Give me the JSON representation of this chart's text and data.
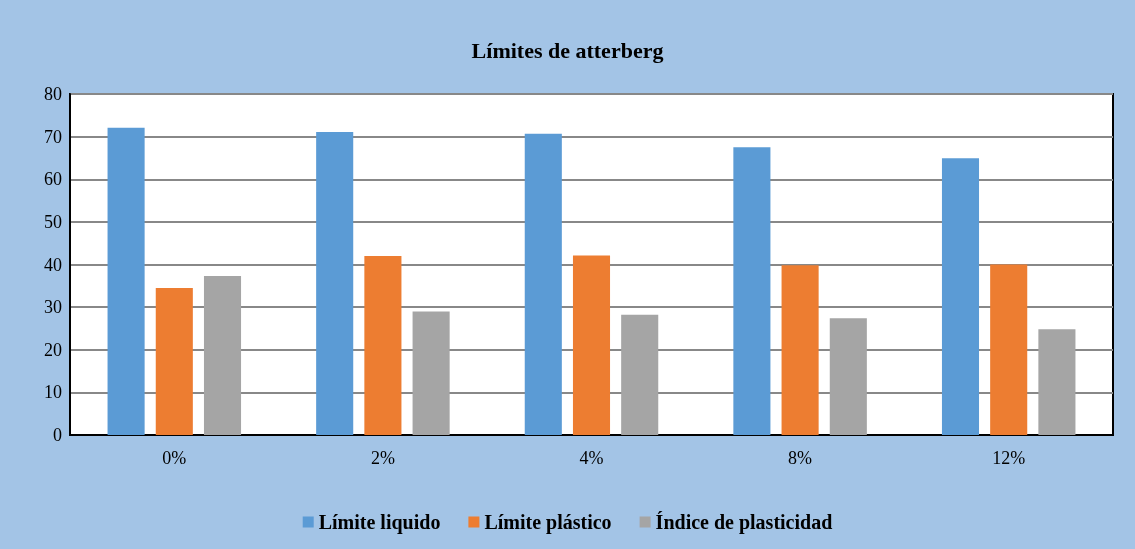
{
  "chart_data": {
    "type": "bar",
    "title": "Límites de atterberg",
    "categories": [
      "0%",
      "2%",
      "4%",
      "8%",
      "12%"
    ],
    "series": [
      {
        "name": "Límite liquido",
        "color": "#5b9bd5",
        "values": [
          72.1,
          71.1,
          70.7,
          67.5,
          64.9
        ]
      },
      {
        "name": "Límite plástico",
        "color": "#ed7d31",
        "values": [
          34.5,
          42.0,
          42.1,
          39.8,
          40.0
        ]
      },
      {
        "name": "Índice de plasticidad",
        "color": "#a5a5a5",
        "values": [
          37.3,
          29.0,
          28.2,
          27.4,
          24.8
        ]
      }
    ],
    "ylim": [
      0,
      80
    ],
    "yticks": [
      0,
      10,
      20,
      30,
      40,
      50,
      60,
      70,
      80
    ],
    "grid": "y",
    "legend": "bottom"
  }
}
